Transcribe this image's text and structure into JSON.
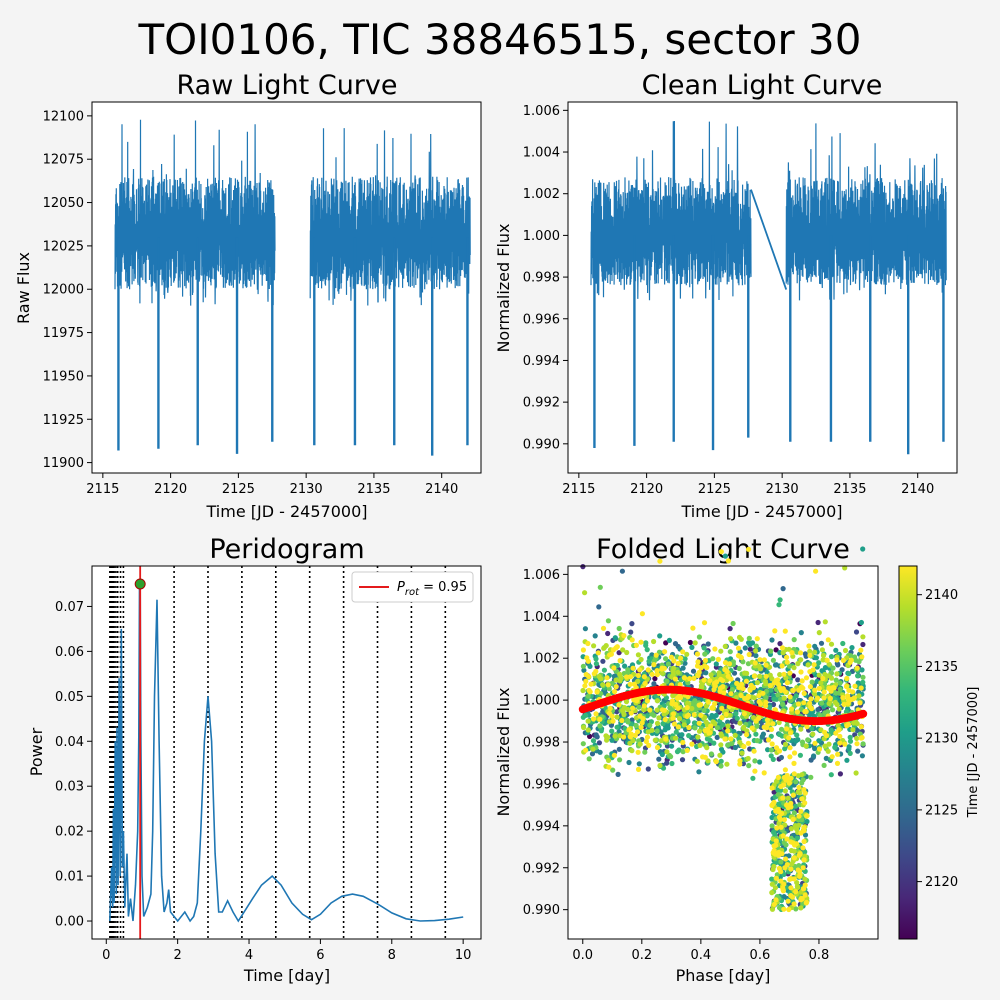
{
  "figure": {
    "suptitle": "TOI0106, TIC 38846515, sector 30"
  },
  "chart_data": [
    {
      "id": "raw",
      "type": "line",
      "title": "Raw Light Curve",
      "xlabel": "Time [JD - 2457000]",
      "ylabel": "Raw Flux",
      "xlim": [
        2114.2,
        2142.9
      ],
      "ylim": [
        11894,
        12108
      ],
      "xticks": [
        2115,
        2120,
        2125,
        2130,
        2135,
        2140
      ],
      "yticks": [
        11900,
        11925,
        11950,
        11975,
        12000,
        12025,
        12050,
        12075,
        12100
      ],
      "color": "#1f77b4",
      "segments": [
        [
          2115.9,
          2127.7
        ],
        [
          2130.3,
          2142.1
        ]
      ],
      "baseline": 12030,
      "scatter_range": [
        12000,
        12065
      ],
      "spike_max": 12098,
      "transits": [
        {
          "x": 2116.15,
          "y": 11907
        },
        {
          "x": 2119.1,
          "y": 11908
        },
        {
          "x": 2122.0,
          "y": 11910
        },
        {
          "x": 2124.9,
          "y": 11905
        },
        {
          "x": 2127.5,
          "y": 11912
        },
        {
          "x": 2130.6,
          "y": 11910
        },
        {
          "x": 2133.6,
          "y": 11910
        },
        {
          "x": 2136.5,
          "y": 11910
        },
        {
          "x": 2139.3,
          "y": 11904
        },
        {
          "x": 2141.9,
          "y": 11910
        }
      ],
      "grid": false,
      "legend": "none"
    },
    {
      "id": "clean",
      "type": "line",
      "title": "Clean Light Curve",
      "xlabel": "Time [JD - 2457000]",
      "ylabel": "Normalized Flux",
      "xlim": [
        2114.2,
        2142.9
      ],
      "ylim": [
        0.9886,
        1.0064
      ],
      "xticks": [
        2115,
        2120,
        2125,
        2130,
        2135,
        2140
      ],
      "yticks": [
        0.99,
        0.992,
        0.994,
        0.996,
        0.998,
        1.0,
        1.002,
        1.004,
        1.006
      ],
      "ytick_labels": [
        "0.990",
        "0.992",
        "0.994",
        "0.996",
        "0.998",
        "1.000",
        "1.002",
        "1.004",
        "1.006"
      ],
      "color": "#1f77b4",
      "segments": [
        [
          2115.9,
          2127.7
        ],
        [
          2130.3,
          2142.1
        ]
      ],
      "gap_line": [
        {
          "x": 2127.7,
          "y": 1.0022
        },
        {
          "x": 2130.3,
          "y": 0.9974
        }
      ],
      "baseline": 1.0,
      "scatter_range": [
        0.9976,
        1.0028
      ],
      "spike_max": 1.0056,
      "transits": [
        {
          "x": 2116.15,
          "y": 0.9898
        },
        {
          "x": 2119.1,
          "y": 0.9899
        },
        {
          "x": 2122.0,
          "y": 0.9901
        },
        {
          "x": 2124.9,
          "y": 0.9897
        },
        {
          "x": 2127.5,
          "y": 0.9903
        },
        {
          "x": 2130.6,
          "y": 0.9901
        },
        {
          "x": 2133.6,
          "y": 0.9901
        },
        {
          "x": 2136.5,
          "y": 0.9901
        },
        {
          "x": 2139.3,
          "y": 0.9895
        },
        {
          "x": 2141.9,
          "y": 0.9901
        }
      ],
      "grid": false,
      "legend": "none"
    },
    {
      "id": "periodogram",
      "type": "line",
      "title": "Peridogram",
      "xlabel": "Time [day]",
      "ylabel": "Power",
      "xlim": [
        -0.4,
        10.5
      ],
      "ylim": [
        -0.004,
        0.079
      ],
      "xticks": [
        0,
        2,
        4,
        6,
        8,
        10
      ],
      "yticks": [
        0.0,
        0.01,
        0.02,
        0.03,
        0.04,
        0.05,
        0.06,
        0.07
      ],
      "ytick_labels": [
        "0.00",
        "0.01",
        "0.02",
        "0.03",
        "0.04",
        "0.05",
        "0.06",
        "0.07"
      ],
      "color": "#1f77b4",
      "curve": [
        [
          0.1,
          0.0
        ],
        [
          0.15,
          0.012
        ],
        [
          0.18,
          0.003
        ],
        [
          0.2,
          0.025
        ],
        [
          0.22,
          0.004
        ],
        [
          0.25,
          0.04
        ],
        [
          0.28,
          0.006
        ],
        [
          0.3,
          0.043
        ],
        [
          0.33,
          0.008
        ],
        [
          0.36,
          0.054
        ],
        [
          0.39,
          0.01
        ],
        [
          0.42,
          0.065
        ],
        [
          0.45,
          0.012
        ],
        [
          0.48,
          0.02
        ],
        [
          0.52,
          0.003
        ],
        [
          0.58,
          0.015
        ],
        [
          0.62,
          0.001
        ],
        [
          0.68,
          0.005
        ],
        [
          0.75,
          0.0
        ],
        [
          0.82,
          0.008
        ],
        [
          0.88,
          0.02
        ],
        [
          0.91,
          0.041
        ],
        [
          0.93,
          0.075
        ],
        [
          0.95,
          0.075
        ],
        [
          0.97,
          0.04
        ],
        [
          1.0,
          0.01
        ],
        [
          1.05,
          0.001
        ],
        [
          1.15,
          0.003
        ],
        [
          1.25,
          0.006
        ],
        [
          1.3,
          0.02
        ],
        [
          1.35,
          0.05
        ],
        [
          1.42,
          0.0715
        ],
        [
          1.48,
          0.04
        ],
        [
          1.55,
          0.01
        ],
        [
          1.62,
          0.002
        ],
        [
          1.7,
          0.004
        ],
        [
          1.75,
          0.007
        ],
        [
          1.8,
          0.002
        ],
        [
          1.9,
          0.001
        ],
        [
          2.0,
          0.0
        ],
        [
          2.2,
          0.002
        ],
        [
          2.35,
          0.0
        ],
        [
          2.45,
          0.001
        ],
        [
          2.55,
          0.004
        ],
        [
          2.65,
          0.02
        ],
        [
          2.75,
          0.04
        ],
        [
          2.85,
          0.05
        ],
        [
          2.95,
          0.04
        ],
        [
          3.05,
          0.015
        ],
        [
          3.15,
          0.002
        ],
        [
          3.25,
          0.002
        ],
        [
          3.4,
          0.0045
        ],
        [
          3.55,
          0.002
        ],
        [
          3.7,
          0.0
        ],
        [
          3.9,
          0.0025
        ],
        [
          4.1,
          0.005
        ],
        [
          4.35,
          0.008
        ],
        [
          4.65,
          0.01
        ],
        [
          4.9,
          0.008
        ],
        [
          5.2,
          0.004
        ],
        [
          5.5,
          0.0015
        ],
        [
          5.75,
          0.0003
        ],
        [
          6.0,
          0.0015
        ],
        [
          6.3,
          0.004
        ],
        [
          6.6,
          0.0055
        ],
        [
          6.9,
          0.006
        ],
        [
          7.2,
          0.0055
        ],
        [
          7.6,
          0.0038
        ],
        [
          8.0,
          0.0018
        ],
        [
          8.4,
          0.0005
        ],
        [
          8.8,
          0.0
        ],
        [
          9.2,
          0.0001
        ],
        [
          9.6,
          0.0004
        ],
        [
          10.0,
          0.0009
        ]
      ],
      "vlines_dotted": [
        0.1,
        0.14,
        0.18,
        0.22,
        0.27,
        0.32,
        0.4,
        0.48,
        1.9,
        2.85,
        3.8,
        4.75,
        5.7,
        6.65,
        7.6,
        8.55,
        9.5
      ],
      "prot_line": 0.95,
      "peak_marker": {
        "x": 0.95,
        "y": 0.075
      },
      "legend": {
        "label_main": "P",
        "label_sub": "rot",
        "label_value": " = 0.95",
        "color": "#e41a1c",
        "position": "top-right"
      },
      "grid": false
    },
    {
      "id": "folded",
      "type": "scatter",
      "title": "Folded Light Curve",
      "xlabel": "Phase [day]",
      "ylabel": "Normalized Flux",
      "xlim": [
        -0.05,
        1.0
      ],
      "ylim": [
        0.9886,
        1.0064
      ],
      "xticks": [
        0.0,
        0.2,
        0.4,
        0.6,
        0.8
      ],
      "xtick_labels": [
        "0.0",
        "0.2",
        "0.4",
        "0.6",
        "0.8"
      ],
      "yticks": [
        0.99,
        0.992,
        0.994,
        0.996,
        0.998,
        1.0,
        1.002,
        1.004,
        1.006
      ],
      "ytick_labels": [
        "0.990",
        "0.992",
        "0.994",
        "0.996",
        "0.998",
        "1.000",
        "1.002",
        "1.004",
        "1.006"
      ],
      "phase_range": [
        0.0,
        0.95
      ],
      "transit": {
        "center": 0.7,
        "halfwidth": 0.08,
        "depth_min": 0.9897
      },
      "model": {
        "color": "#ff0000",
        "baseline": 0.99975,
        "amplitude": 0.00075,
        "peak_phase": 0.29
      },
      "colorbar": {
        "label": "Time [JD - 2457000]",
        "range": [
          2116,
          2142
        ],
        "ticks": [
          2120,
          2125,
          2130,
          2135,
          2140
        ],
        "colors": [
          "#440154",
          "#482878",
          "#3e4989",
          "#31688e",
          "#26828e",
          "#1f9e89",
          "#35b779",
          "#6ece58",
          "#b5de2b",
          "#fde725"
        ]
      },
      "grid": false
    }
  ]
}
